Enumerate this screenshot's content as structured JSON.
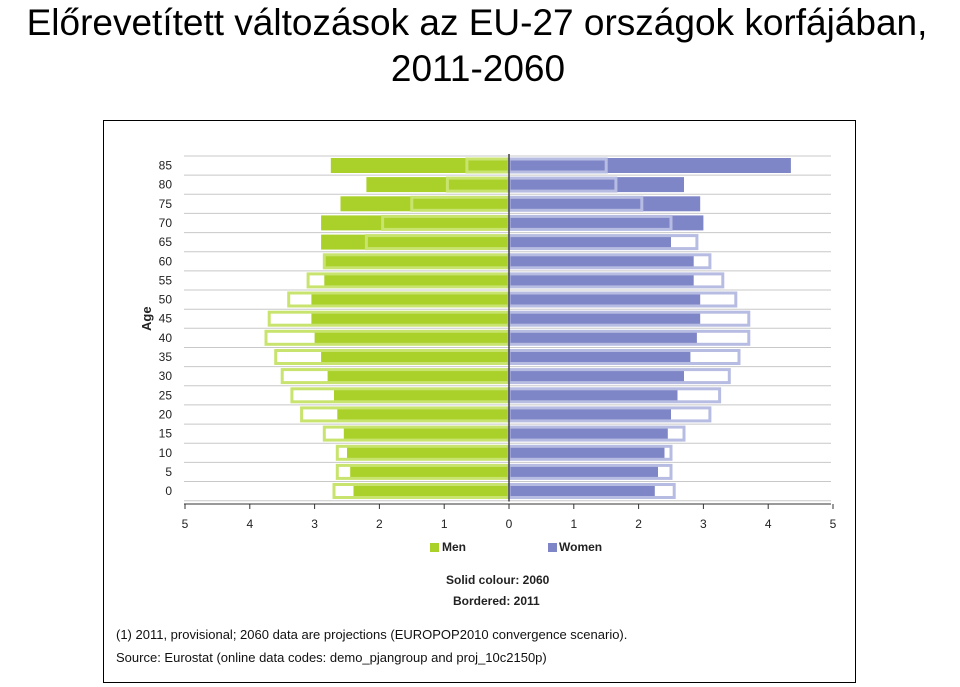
{
  "page": {
    "title_line1": "Előrevetített változások az EU-27 országok korfájában,",
    "title_line2": "2011-2060"
  },
  "chart_data": {
    "type": "bar",
    "orientation": "horizontal-pyramid",
    "categories": [
      "0",
      "5",
      "10",
      "15",
      "20",
      "25",
      "30",
      "35",
      "40",
      "45",
      "50",
      "55",
      "60",
      "65",
      "70",
      "75",
      "80",
      "85"
    ],
    "ylabel": "Age",
    "xlim": [
      -5,
      5
    ],
    "x_ticks": [
      5,
      4,
      3,
      2,
      1,
      0,
      1,
      2,
      3,
      4,
      5
    ],
    "grid": true,
    "legend_position": "bottom",
    "series": [
      {
        "name": "Men",
        "year": "2060",
        "style": "solid",
        "color": "#a9d12a",
        "values": [
          2.4,
          2.45,
          2.5,
          2.55,
          2.65,
          2.7,
          2.8,
          2.9,
          3.0,
          3.05,
          3.05,
          2.85,
          2.85,
          2.9,
          2.9,
          2.6,
          2.2,
          2.75
        ]
      },
      {
        "name": "Women",
        "year": "2060",
        "style": "solid",
        "color": "#7f86c7",
        "values": [
          2.25,
          2.3,
          2.4,
          2.45,
          2.5,
          2.6,
          2.7,
          2.8,
          2.9,
          2.95,
          2.95,
          2.85,
          2.85,
          2.5,
          3.0,
          2.95,
          2.7,
          4.35
        ]
      },
      {
        "name": "Men",
        "year": "2011",
        "style": "bordered",
        "color": "#ffffff",
        "values": [
          2.7,
          2.65,
          2.65,
          2.85,
          3.2,
          3.35,
          3.5,
          3.6,
          3.75,
          3.7,
          3.4,
          3.1,
          2.85,
          2.2,
          1.95,
          1.5,
          0.95,
          0.65
        ]
      },
      {
        "name": "Women",
        "year": "2011",
        "style": "bordered",
        "color": "#ffffff",
        "values": [
          2.55,
          2.5,
          2.5,
          2.7,
          3.1,
          3.25,
          3.4,
          3.55,
          3.7,
          3.7,
          3.5,
          3.3,
          3.1,
          2.9,
          2.5,
          2.05,
          1.65,
          1.5
        ]
      }
    ],
    "legend": {
      "men": "Men",
      "women": "Women"
    },
    "notes": {
      "solid": "Solid colour: 2060",
      "bordered": "Bordered: 2011"
    },
    "footnote": "(1) 2011, provisional; 2060 data are projections (EUROPOP2010 convergence scenario).",
    "source": "Source: Eurostat (online data codes: demo_pjangroup and proj_10c2150p)"
  },
  "colors": {
    "men": "#a9d12a",
    "women": "#7f86c7",
    "men_border": "#c8e46e",
    "women_border": "#b7bce2",
    "grid": "#c8c8c8"
  }
}
